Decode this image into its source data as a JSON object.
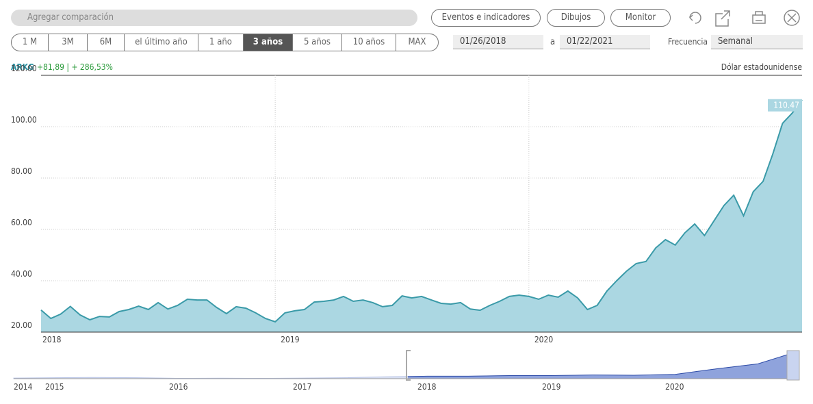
{
  "toolbar": {
    "search": "Agregar comparación",
    "buttons": [
      "Eventos e indicadores",
      "Dibujos",
      "Monitor"
    ]
  },
  "ranges": {
    "options": [
      "1 M",
      "3M",
      "6M",
      "el último año",
      "1 año",
      "3 años",
      "5 años",
      "10 años",
      "MAX"
    ],
    "active": 5
  },
  "dates": {
    "from": "01/26/2018",
    "separator": "a",
    "to": "01/22/2021"
  },
  "frequency": {
    "label": "Frecuencia",
    "value": "Semanal"
  },
  "symbol": {
    "ticker": "ARKG",
    "change": "+81,89 | + 286,53%",
    "currency": "Dólar estadounidense"
  },
  "chart_data": {
    "type": "area",
    "categories": [
      "2018",
      null,
      null,
      null,
      null,
      null,
      null,
      null,
      null,
      null,
      null,
      null,
      null,
      null,
      null,
      null,
      null,
      null,
      null,
      null,
      null,
      null,
      null,
      null,
      "2019",
      null,
      null,
      null,
      null,
      null,
      null,
      null,
      null,
      null,
      null,
      null,
      null,
      null,
      null,
      null,
      null,
      null,
      null,
      null,
      null,
      null,
      null,
      null,
      null,
      null,
      "2020",
      null,
      null,
      null,
      null,
      null,
      null,
      null,
      null,
      null,
      null,
      null,
      null,
      null,
      null,
      null,
      null,
      null,
      null,
      null,
      null,
      null,
      null,
      null,
      null,
      null,
      null,
      null,
      null
    ],
    "series": [
      {
        "name": "ARKG",
        "color": "#3a9aa8",
        "values": [
          28.58,
          25.3,
          27,
          30,
          26.7,
          24.8,
          26.1,
          25.9,
          28,
          28.8,
          30.1,
          28.8,
          31.5,
          29,
          30.4,
          32.8,
          32.5,
          32.5,
          29.6,
          27.2,
          29.9,
          29.3,
          27.5,
          25.3,
          24,
          27.5,
          28.3,
          28.8,
          31.7,
          32,
          32.5,
          33.9,
          32,
          32.5,
          31.5,
          29.9,
          30.4,
          34.1,
          33.3,
          33.9,
          32.5,
          31.2,
          30.9,
          31.5,
          29,
          28.5,
          30.4,
          32,
          33.9,
          34.4,
          33.9,
          32.8,
          34.4,
          33.6,
          36,
          33.3,
          28.8,
          30.4,
          36,
          40,
          43.7,
          46.7,
          47.5,
          52.8,
          56,
          53.9,
          58.7,
          62.1,
          57.6,
          63.5,
          69.3,
          73.3,
          65.3,
          74.7,
          78.7,
          89.3,
          101.3,
          105.3,
          110.47
        ]
      }
    ],
    "ylim": [
      20,
      120
    ],
    "yticks": [
      {
        "value": 20,
        "label": "20.00"
      },
      {
        "value": 40,
        "label": "40.00"
      },
      {
        "value": 60,
        "label": "60.00"
      },
      {
        "value": 80,
        "label": "80.00"
      },
      {
        "value": 100,
        "label": "100.00"
      },
      {
        "value": 120,
        "label": "120.00"
      }
    ],
    "grid": true
  },
  "navigator": {
    "labels": [
      "2014",
      "2015",
      "2016",
      "2017",
      "2018",
      "2019",
      "2020"
    ],
    "values": [
      22,
      23,
      24,
      23,
      21,
      21.5,
      21,
      22,
      23,
      26,
      28,
      28,
      30,
      30,
      32,
      31,
      34,
      52,
      68,
      110
    ]
  }
}
